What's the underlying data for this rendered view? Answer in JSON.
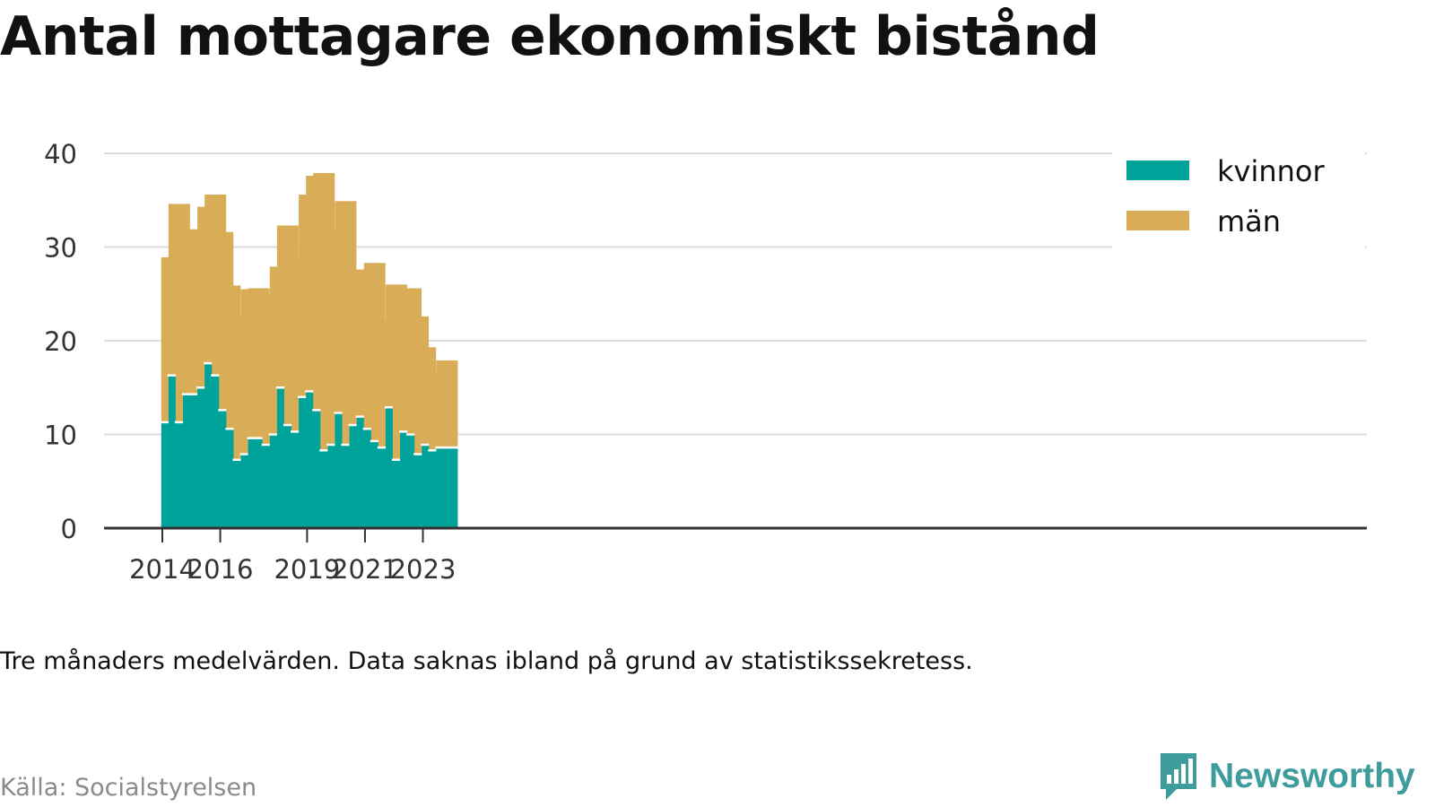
{
  "title": "Antal mottagare ekonomiskt bistånd",
  "note": "Tre månaders medelvärden. Data saknas ibland på grund av statistikssekretess.",
  "source": "Källa: Socialstyrelsen",
  "brand": {
    "name": "Newsworthy",
    "logo_icon": "bar-chart-speech-bubble-icon"
  },
  "colors": {
    "kvinnor": "#00a39a",
    "man": "#d9ac57",
    "grid": "#dddddd",
    "axis": "#333333",
    "brand": "#3f9c9c"
  },
  "chart_data": {
    "type": "bar",
    "stacked": true,
    "title": "Antal mottagare ekonomiskt bistånd",
    "xlabel": "",
    "ylabel": "",
    "ylim": [
      0,
      40
    ],
    "yticks": [
      0,
      10,
      20,
      30,
      40
    ],
    "xticks": [
      {
        "label": "2014",
        "date": "2014-01"
      },
      {
        "label": "2016",
        "date": "2016-01"
      },
      {
        "label": "2019",
        "date": "2019-01"
      },
      {
        "label": "2021",
        "date": "2021-01"
      },
      {
        "label": "2023",
        "date": "2023-01"
      }
    ],
    "grid": true,
    "legend": "top-right",
    "categories": [
      "2014-05",
      "2014-08",
      "2014-11",
      "2015-02",
      "2015-05",
      "2015-08",
      "2015-11",
      "2016-02",
      "2016-05",
      "2016-08",
      "2016-11",
      "2017-02",
      "2017-05",
      "2017-08",
      "2017-11",
      "2018-02",
      "2018-05",
      "2018-08",
      "2018-11",
      "2019-02",
      "2019-05",
      "2019-08",
      "2019-11",
      "2020-02",
      "2020-05",
      "2020-08",
      "2020-11",
      "2021-02",
      "2021-05",
      "2021-08",
      "2021-11",
      "2022-02",
      "2022-05",
      "2022-08",
      "2022-11",
      "2023-02",
      "2023-05",
      "2023-08",
      "2023-11"
    ],
    "series": [
      {
        "name": "kvinnor",
        "values": [
          11.3,
          16.3,
          11.3,
          14.3,
          14.3,
          15,
          17.6,
          16.3,
          12.6,
          10.6,
          7.3,
          7.9,
          9.6,
          9.6,
          8.9,
          10,
          15,
          11,
          10.3,
          14,
          14.6,
          12.6,
          8.3,
          8.9,
          12.3,
          8.9,
          11,
          11.9,
          10.6,
          9.3,
          8.6,
          12.9,
          7.3,
          10.3,
          10,
          7.9,
          8.9,
          8.3,
          8.6
        ]
      },
      {
        "name": "män",
        "values": [
          17.6,
          18.3,
          13.9,
          17.6,
          15.6,
          19.3,
          18,
          15.3,
          13.3,
          12,
          14,
          17.6,
          16,
          11.7,
          16,
          17.9,
          17.3,
          18,
          17.3,
          21.6,
          23,
          25.3,
          22.6,
          23,
          22.6,
          17.3,
          16.6,
          15.1,
          17.7,
          13,
          11.4,
          13.1,
          13.6,
          15.3,
          12.6,
          11.4,
          7.7,
          7.3,
          9.3
        ]
      }
    ]
  }
}
